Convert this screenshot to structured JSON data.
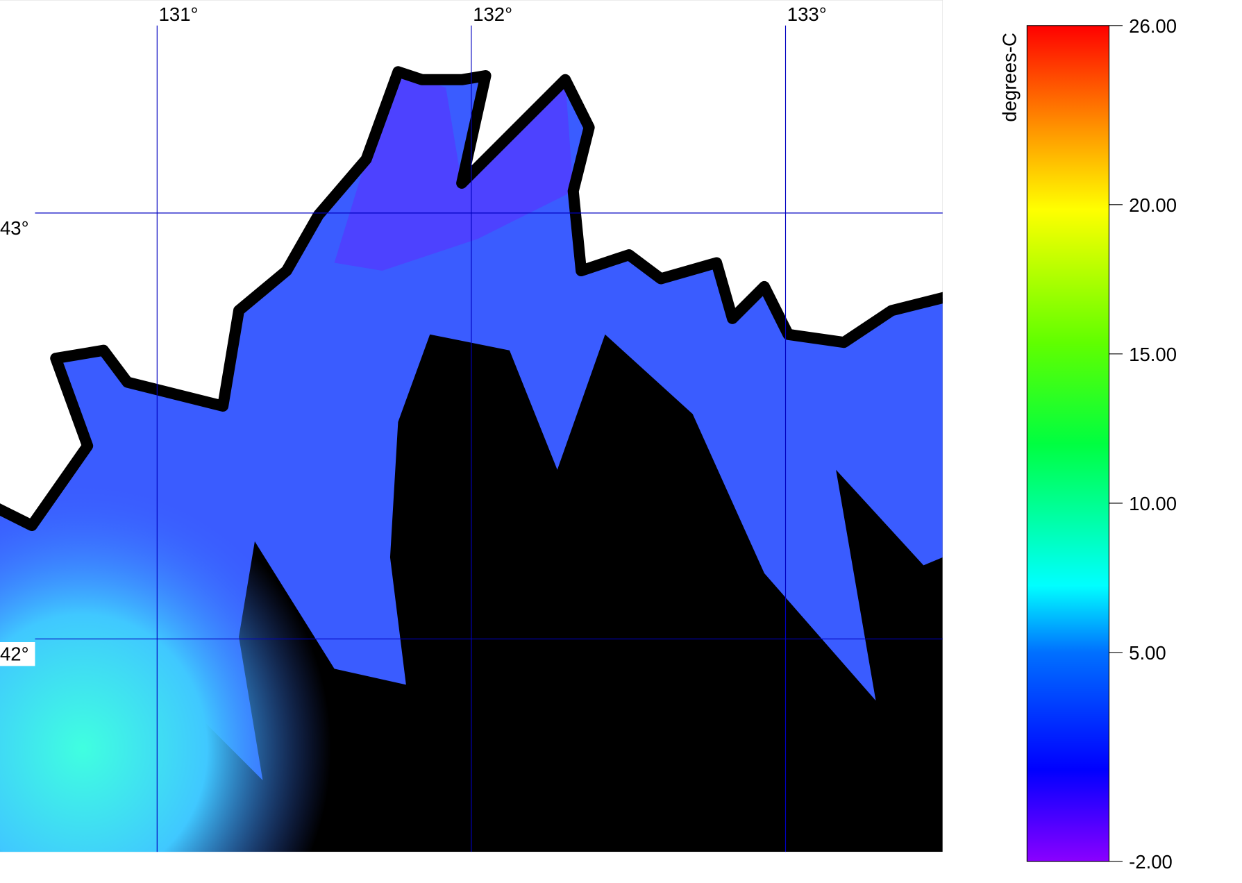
{
  "map": {
    "lon_range": [
      130.5,
      133.5
    ],
    "lat_range": [
      41.5,
      43.5
    ],
    "longitude_labels": [
      {
        "value": 131,
        "label": "131°"
      },
      {
        "value": 132,
        "label": "132°"
      },
      {
        "value": 133,
        "label": "133°"
      }
    ],
    "latitude_labels": [
      {
        "value": 43,
        "label": "43°"
      },
      {
        "value": 42,
        "label": "42°"
      }
    ],
    "colorbar": {
      "label": "degrees-C",
      "range": [
        -2,
        26
      ],
      "ticks": [
        {
          "value": 26,
          "label": "26.00"
        },
        {
          "value": 20,
          "label": "20.00"
        },
        {
          "value": 15,
          "label": "15.00"
        },
        {
          "value": 10,
          "label": "10.00"
        },
        {
          "value": 5,
          "label": "5.00"
        },
        {
          "value": -2,
          "label": "-2.00"
        }
      ]
    }
  }
}
